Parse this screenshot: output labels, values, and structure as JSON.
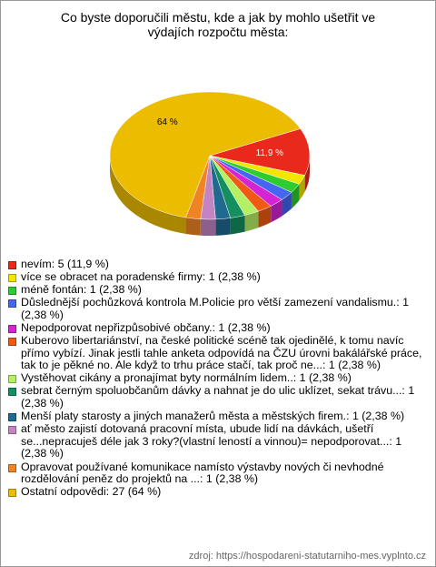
{
  "chart_data": {
    "type": "pie",
    "title": "Co byste doporučili městu, kde a jak by mohlo ušetřit ve výdajích rozpočtu města:",
    "categories": [
      "nevím: 5 (11,9 %)",
      "více se obracet na poradenské firmy: 1 (2,38 %)",
      "méně fontán: 1 (2,38 %)",
      "Důslednější pochůzková kontrola M.Policie pro větší zamezení vandalismu.: 1 (2,38 %)",
      "Nepodporovat nepřizpůsobivé občany.: 1 (2,38 %)",
      "Kuberovo libertariánství, na české politické scéně tak ojedinělé, k tomu navíc přímo vybízí. Jinak jestli tahle anketa odpovídá na ČZU úrovni bakálářské práce, tak to je pěkné no. Ale když to trhu práce stačí, tak proč ne...: 1 (2,38 %)",
      "Vystěhovat cikány a pronajímat byty normálním lidem..: 1 (2,38 %)",
      "sebrat černým spoluobčanům dávky a nahnat je do ulic uklízet, sekat trávu...: 1 (2,38 %)",
      "Menší platy starosty a jiných manažerů města a městských firem.: 1 (2,38 %)",
      "ať město zajistí dotovaná pracovní místa, ubude lidí na dávkách, ušetří se...nepracuješ déle jak 3 roky?(vlastní leností a vinnou)= nepodporovat...: 1 (2,38 %)",
      "Opravovat používané komunikace namísto výstavby nových či nevhodné rozdělování peněz do projektů na ...: 1 (2,38 %)",
      "Ostatní odpovědi: 27 (64 %)"
    ],
    "values": [
      11.9,
      2.38,
      2.38,
      2.38,
      2.38,
      2.38,
      2.38,
      2.38,
      2.38,
      2.38,
      2.38,
      64
    ],
    "value_labels": [
      "11,9 %",
      null,
      null,
      null,
      null,
      null,
      null,
      null,
      null,
      null,
      null,
      "64 %"
    ],
    "colors": [
      "#e8291c",
      "#f2e600",
      "#2ecc2e",
      "#4466f0",
      "#d424d4",
      "#f05a14",
      "#b4f064",
      "#149060",
      "#206a90",
      "#c484c4",
      "#f08424",
      "#ecbc00"
    ],
    "source": "zdroj: https://hospodareni-statutarniho-mes.vyplnto.cz"
  }
}
